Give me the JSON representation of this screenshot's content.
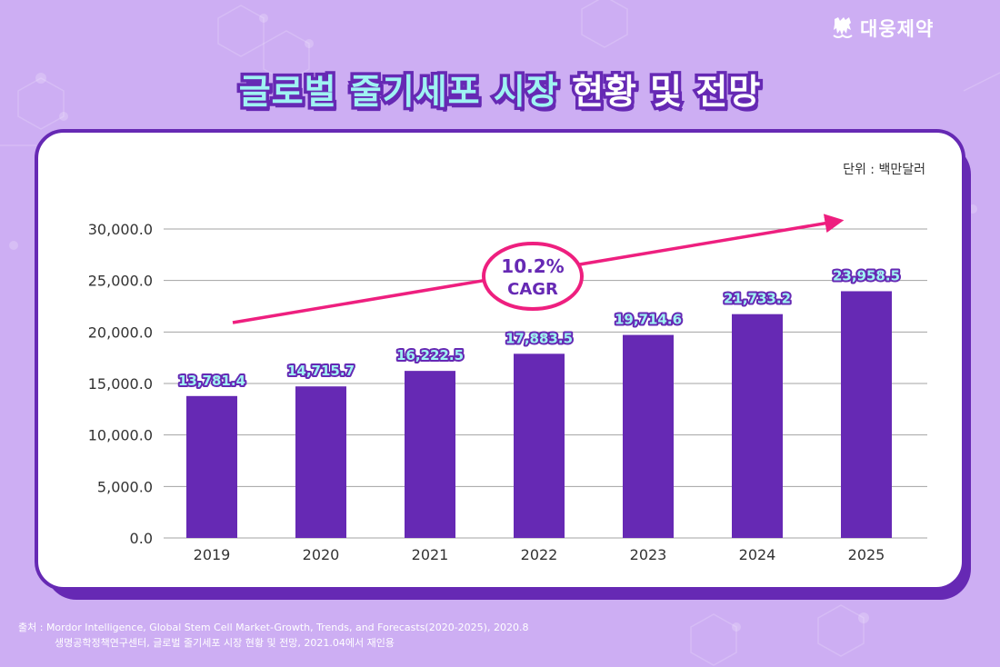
{
  "brand": {
    "logo_text": "대웅제약"
  },
  "header": {
    "title_part1": "글로벌 줄기세포 시장",
    "title_part2": "현황 및 전망"
  },
  "unit_label": "단위 : 백만달러",
  "cagr": {
    "value": "10.2%",
    "label": "CAGR"
  },
  "colors": {
    "bar": "#6629b4",
    "arrow": "#ee1f7f",
    "label_fill": "#9ff3f2",
    "background": "#cdaef3"
  },
  "footer": {
    "line1": "출처 : Mordor Intelligence, Global Stem Cell Market-Growth, Trends, and Forecasts(2020-2025), 2020.8",
    "line2": "생명공학정책연구센터, 글로벌 줄기세포 시장 현황 및 전망, 2021.04에서 재인용"
  },
  "chart_data": {
    "type": "bar",
    "title": "글로벌 줄기세포 시장 현황 및 전망",
    "xlabel": "",
    "ylabel": "단위 : 백만달러",
    "categories": [
      "2019",
      "2020",
      "2021",
      "2022",
      "2023",
      "2024",
      "2025"
    ],
    "values": [
      13781.4,
      14715.7,
      16222.5,
      17883.5,
      19714.6,
      21733.2,
      23958.5
    ],
    "value_labels": [
      "13,781.4",
      "14,715.7",
      "16,222.5",
      "17,883.5",
      "19,714.6",
      "21,733.2",
      "23,958.5"
    ],
    "ylim": [
      0,
      30000
    ],
    "yticks": [
      0,
      5000,
      10000,
      15000,
      20000,
      25000,
      30000
    ],
    "ytick_labels": [
      "0.0",
      "5,000.0",
      "10,000.0",
      "15,000.0",
      "20,000.0",
      "25,000.0",
      "30,000.0"
    ],
    "grid": true,
    "annotation": "10.2% CAGR"
  }
}
